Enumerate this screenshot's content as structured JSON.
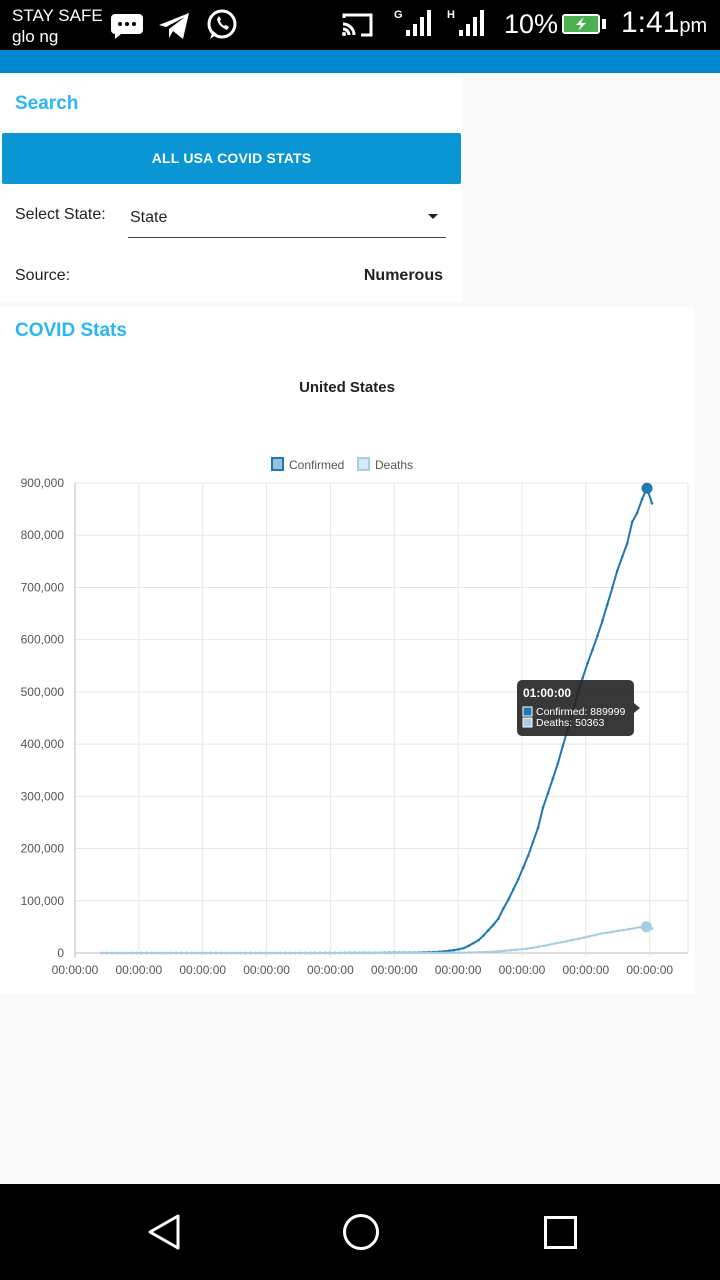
{
  "status_bar": {
    "carrier_line1": "STAY SAFE",
    "carrier_line2": "glo ng",
    "signal1_label": "G",
    "signal2_label": "H",
    "battery_percent": "10%",
    "time": "1:41",
    "ampm": "pm",
    "icons": [
      "messaging-icon",
      "telegram-icon",
      "whatsapp-icon",
      "cast-icon",
      "signal-icon",
      "signal-icon",
      "battery-charging-icon"
    ]
  },
  "search": {
    "title": "Search",
    "all_usa_button": "ALL USA COVID STATS",
    "select_label": "Select State:",
    "select_value": "State",
    "source_label": "Source:",
    "source_value": "Numerous"
  },
  "stats": {
    "title": "COVID Stats"
  },
  "chart_data": {
    "type": "line",
    "title": "United States",
    "legend_position": "top",
    "grid": true,
    "y_ticks": [
      "0",
      "100,000",
      "200,000",
      "300,000",
      "400,000",
      "500,000",
      "600,000",
      "700,000",
      "800,000",
      "900,000"
    ],
    "ylim": [
      0,
      900000
    ],
    "x_tick_labels": [
      "00:00:00",
      "00:00:00",
      "00:00:00",
      "00:00:00",
      "00:00:00",
      "00:00:00",
      "00:00:00",
      "00:00:00",
      "00:00:00",
      "00:00:00"
    ],
    "series": [
      {
        "name": "Confirmed",
        "color": "#1f78b4",
        "values": [
          1,
          1,
          1,
          2,
          2,
          2,
          2,
          2,
          2,
          2,
          2,
          2,
          2,
          2,
          3,
          3,
          3,
          3,
          3,
          3,
          3,
          3,
          3,
          3,
          4,
          4,
          5,
          5,
          6,
          6,
          7,
          8,
          9,
          10,
          11,
          13,
          15,
          15,
          16,
          17,
          19,
          21,
          25,
          32,
          43,
          53,
          62,
          74,
          90,
          101,
          122,
          141,
          160,
          183,
          222,
          241,
          255,
          314,
          345,
          371,
          400,
          413,
          521,
          587,
          826,
          1130,
          1614,
          1861,
          2319,
          3103,
          4172,
          5526,
          7076,
          9329,
          13786,
          19130,
          24648,
          33510,
          43850,
          54011,
          65778,
          85228,
          101788,
          121478,
          140904,
          163539,
          186046,
          213144,
          239279,
          278458,
          305755,
          334125,
          363321,
          396223,
          429052,
          461437,
          496535,
          526396,
          554849,
          580619,
          607670,
          636350,
          667801,
          699706,
          732197,
          758809,
          784326,
          825306,
          842624,
          869170,
          889999,
          861000
        ],
        "highlight": {
          "label": "01:00:00",
          "value": 889999
        }
      },
      {
        "name": "Deaths",
        "color": "#a6cee3",
        "values": [
          0,
          0,
          0,
          0,
          0,
          0,
          0,
          0,
          0,
          0,
          0,
          0,
          0,
          0,
          0,
          0,
          0,
          0,
          0,
          0,
          0,
          0,
          0,
          0,
          0,
          0,
          0,
          0,
          0,
          0,
          0,
          0,
          0,
          0,
          0,
          0,
          0,
          0,
          0,
          0,
          1,
          2,
          6,
          9,
          11,
          12,
          15,
          19,
          22,
          26,
          30,
          36,
          41,
          48,
          57,
          68,
          86,
          109,
          150,
          206,
          255,
          301,
          414,
          557,
          706,
          942,
          1209,
          1581,
          2026,
          2467,
          3170,
          4081,
          5087,
          6137,
          7106,
          8490,
          10010,
          12007,
          13902,
          16082,
          18515,
          20520,
          22800,
          24908,
          27170,
          29500,
          32000,
          34500,
          37000,
          38800,
          40500,
          42500,
          44000,
          45800,
          47500,
          49500,
          50363,
          47000
        ],
        "highlight": {
          "label": "01:00:00",
          "value": 50363
        }
      }
    ],
    "tooltip": {
      "title": "01:00:00",
      "lines": [
        "Confirmed: 889999",
        "Deaths: 50363"
      ]
    }
  }
}
